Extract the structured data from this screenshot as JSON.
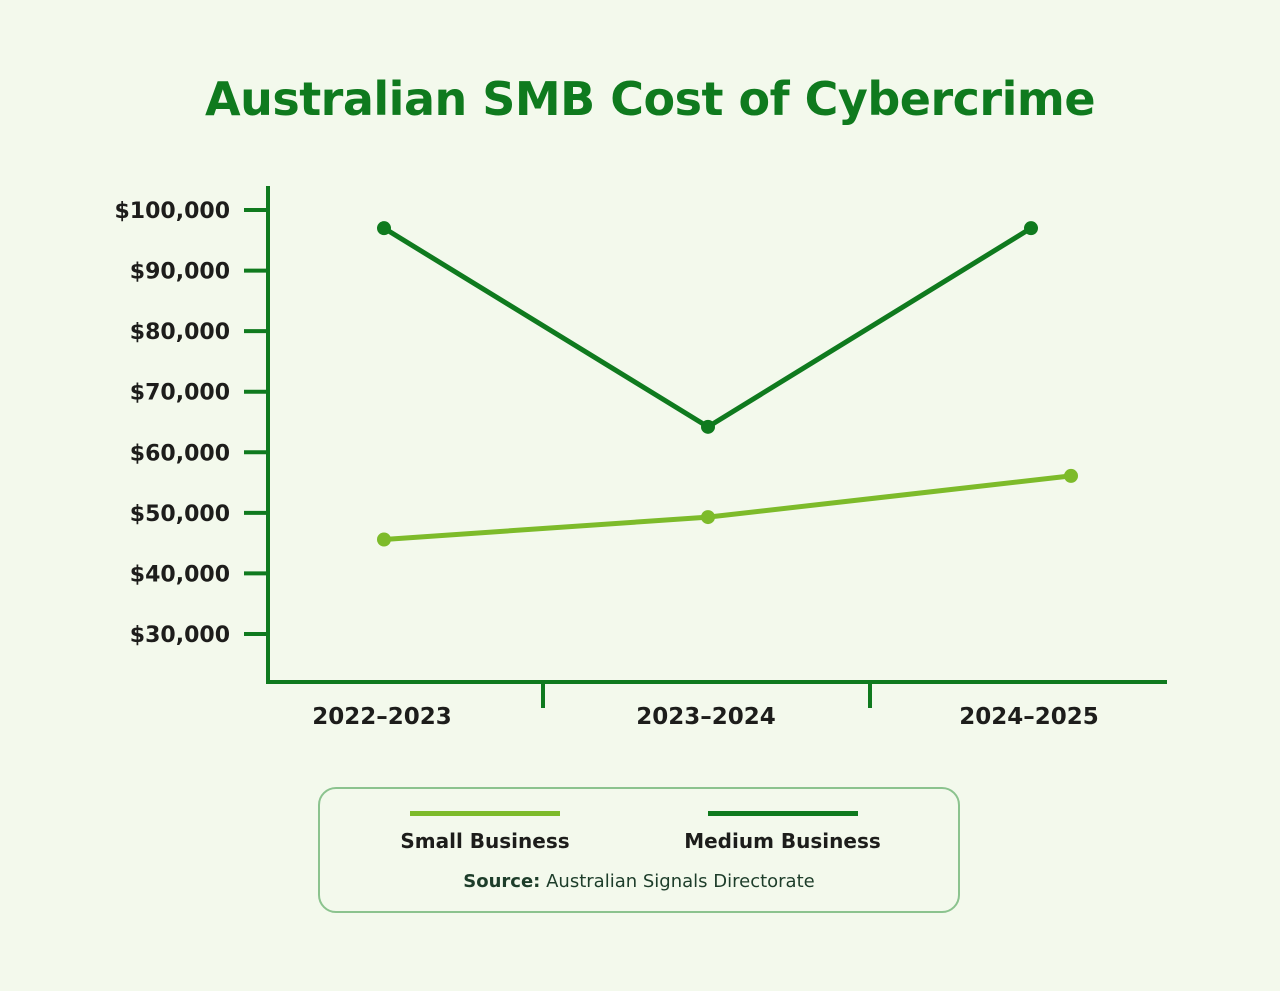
{
  "title": "Australian SMB Cost of Cybercrime",
  "colors": {
    "background": "#f3f9ec",
    "title": "#0f7a1e",
    "axis": "#0f7a1e",
    "small_business": "#7dbb2a",
    "medium_business": "#0f7a1e",
    "legend_border": "#8bc38e"
  },
  "legend": {
    "items": [
      {
        "label": "Small Business",
        "color": "#7dbb2a"
      },
      {
        "label": "Medium Business",
        "color": "#0f7a1e"
      }
    ],
    "source_label": "Source:",
    "source_value": "Australian Signals Directorate"
  },
  "chart_data": {
    "type": "line",
    "title": "Australian SMB Cost of Cybercrime",
    "xlabel": "",
    "ylabel": "",
    "categories": [
      "2022–2023",
      "2023–2024",
      "2024–2025"
    ],
    "series": [
      {
        "name": "Small Business",
        "color": "#7dbb2a",
        "values": [
          45600,
          49300,
          56100
        ]
      },
      {
        "name": "Medium Business",
        "color": "#0f7a1e",
        "values": [
          97000,
          64200,
          97000
        ]
      }
    ],
    "yticks": [
      30000,
      40000,
      50000,
      60000,
      70000,
      80000,
      90000,
      100000
    ],
    "ytick_labels": [
      "$30,000",
      "$40,000",
      "$50,000",
      "$60,000",
      "$70,000",
      "$80,000",
      "$90,000",
      "$100,000"
    ],
    "ylim": [
      22000,
      104000
    ],
    "grid": false,
    "legend_position": "bottom",
    "annotations": [
      "Source: Australian Signals Directorate"
    ]
  }
}
